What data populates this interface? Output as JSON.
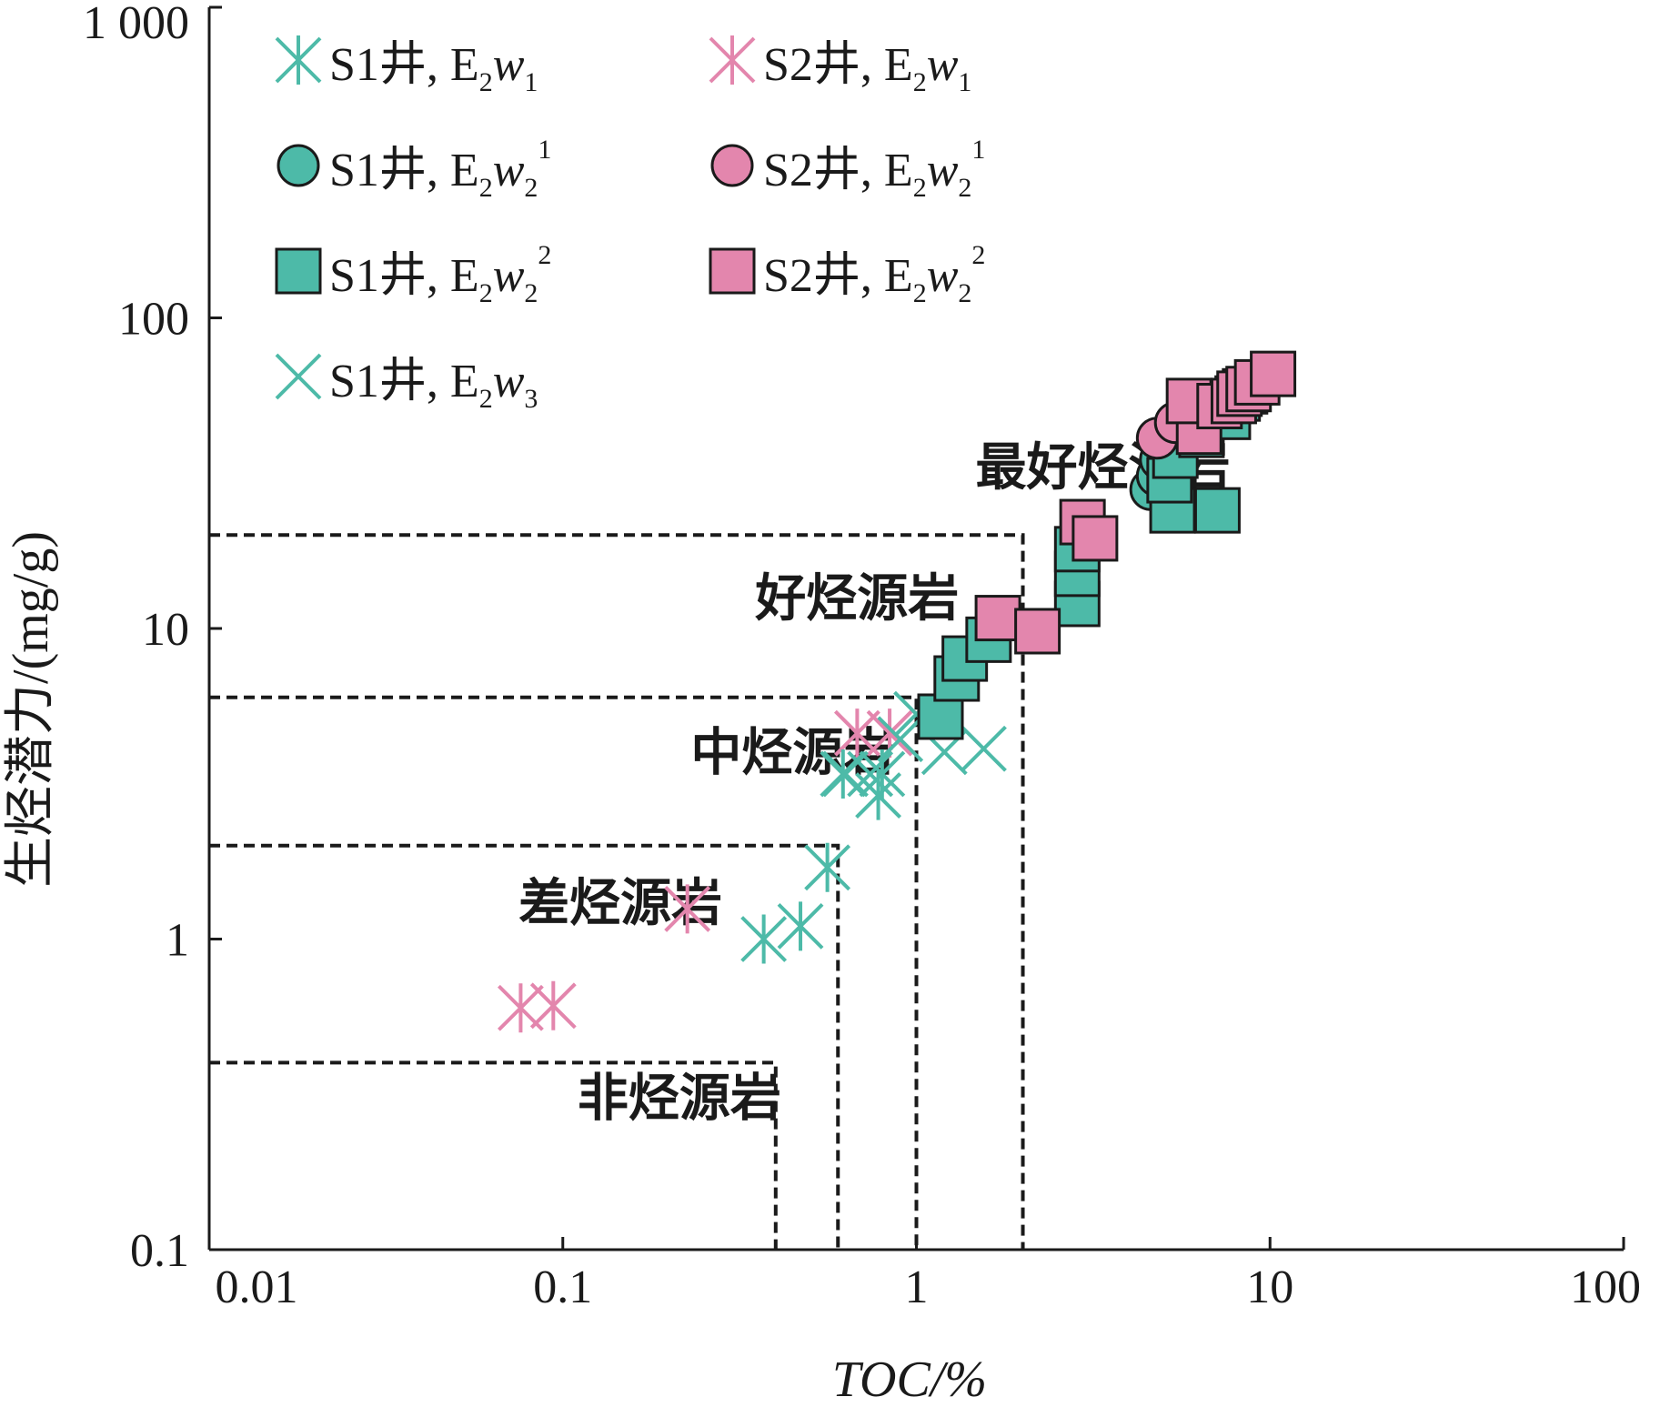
{
  "chart_data": {
    "type": "scatter",
    "title": "",
    "xlabel": "TOC/%",
    "ylabel": "生烃潜力/(mg/g)",
    "x_scale": "log",
    "y_scale": "log",
    "xlim": [
      0.01,
      100
    ],
    "ylim": [
      0.1,
      1000
    ],
    "x_ticks": [
      "0.01",
      "0.1",
      "1",
      "10",
      "100"
    ],
    "y_ticks": [
      "0.1",
      "1",
      "10",
      "100",
      "1 000"
    ],
    "legend_position": "top-left",
    "colors": {
      "teal": "#4dbaa8",
      "pink": "#e386ad",
      "dash": "#1a1a1a"
    },
    "zones": [
      {
        "label": "非烃源岩",
        "toc_max": 0.4,
        "potential_max": 0.4,
        "label_at": [
          0.11,
          0.27
        ]
      },
      {
        "label": "差烃源岩",
        "toc_max": 0.6,
        "potential_max": 2,
        "label_at": [
          0.075,
          1.15
        ]
      },
      {
        "label": "中烃源岩",
        "toc_max": 1,
        "potential_max": 6,
        "label_at": [
          0.23,
          3.5
        ]
      },
      {
        "label": "好烃源岩",
        "toc_max": 2,
        "potential_max": 20,
        "label_at": [
          0.35,
          11.0
        ]
      },
      {
        "label": "最好烃源岩",
        "label_at": [
          1.47,
          29.0
        ]
      }
    ],
    "series": [
      {
        "name": "S1井, E2w1",
        "well": "S1井, E",
        "sub": "2",
        "var": "w",
        "varsub": "1",
        "sup": "",
        "marker": "asterisk",
        "color": "#4dbaa8",
        "points": [
          [
            0.37,
            1.0
          ],
          [
            0.47,
            1.1
          ],
          [
            0.56,
            1.7
          ],
          [
            0.62,
            3.4
          ],
          [
            0.78,
            2.9
          ],
          [
            0.8,
            3.4
          ]
        ]
      },
      {
        "name": "S1井, E2w2 1",
        "well": "S1井, E",
        "sub": "2",
        "var": "w",
        "varsub": "2",
        "sup": "1",
        "marker": "circle",
        "color": "#4dbaa8",
        "points": [
          [
            4.6,
            28.0
          ],
          [
            4.8,
            31.0
          ],
          [
            4.9,
            35.0
          ],
          [
            5.2,
            38.0
          ]
        ]
      },
      {
        "name": "S1井, E2w2 2",
        "well": "S1井, E",
        "sub": "2",
        "var": "w",
        "varsub": "2",
        "sup": "2",
        "marker": "square",
        "color": "#4dbaa8",
        "points": [
          [
            1.17,
            5.2
          ],
          [
            1.3,
            6.9
          ],
          [
            1.37,
            8.0
          ],
          [
            1.6,
            9.2
          ],
          [
            2.85,
            12.0
          ],
          [
            2.85,
            15.0
          ],
          [
            2.85,
            18.0
          ],
          [
            5.3,
            24.0
          ],
          [
            7.1,
            24.0
          ],
          [
            5.2,
            30.0
          ],
          [
            5.4,
            36.0
          ],
          [
            6.4,
            42.0
          ],
          [
            7.6,
            48.0
          ],
          [
            8.1,
            55.0
          ],
          [
            8.5,
            58.0
          ]
        ]
      },
      {
        "name": "S1井, E2w3",
        "well": "S1井, E",
        "sub": "2",
        "var": "w",
        "varsub": "3",
        "sup": "",
        "marker": "x",
        "color": "#4dbaa8",
        "points": [
          [
            0.63,
            3.4
          ],
          [
            0.74,
            3.4
          ],
          [
            0.9,
            4.4
          ],
          [
            1.0,
            5.3
          ],
          [
            1.2,
            4.0
          ],
          [
            1.55,
            4.1
          ]
        ]
      },
      {
        "name": "S2井, E2w1",
        "well": "S2井, E",
        "sub": "2",
        "var": "w",
        "varsub": "1",
        "sup": "",
        "marker": "asterisk",
        "color": "#e386ad",
        "points": [
          [
            0.076,
            0.6
          ],
          [
            0.094,
            0.61
          ],
          [
            0.225,
            1.25
          ],
          [
            0.68,
            4.6
          ],
          [
            0.84,
            4.6
          ]
        ]
      },
      {
        "name": "S2井, E2w2 1",
        "well": "S2井, E",
        "sub": "2",
        "var": "w",
        "varsub": "2",
        "sup": "1",
        "marker": "circle",
        "color": "#e386ad",
        "points": [
          [
            4.8,
            41.0
          ],
          [
            5.4,
            46.0
          ]
        ]
      },
      {
        "name": "S2井, E2w2 2",
        "well": "S2井, E",
        "sub": "2",
        "var": "w",
        "varsub": "2",
        "sup": "2",
        "marker": "square",
        "color": "#e386ad",
        "points": [
          [
            1.7,
            10.8
          ],
          [
            2.2,
            9.8
          ],
          [
            2.95,
            22.0
          ],
          [
            3.2,
            19.5
          ],
          [
            6.3,
            43.0
          ],
          [
            5.9,
            54.0
          ],
          [
            7.2,
            52.0
          ],
          [
            7.9,
            54.0
          ],
          [
            8.2,
            57.0
          ],
          [
            8.7,
            59.0
          ],
          [
            9.2,
            62.0
          ],
          [
            10.2,
            66.0
          ]
        ]
      }
    ]
  }
}
